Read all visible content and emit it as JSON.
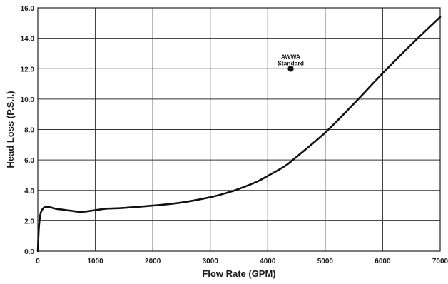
{
  "chart_data": {
    "type": "line",
    "xlabel": "Flow Rate (GPM)",
    "ylabel": "Head Loss (P.S.I.)",
    "xlim": [
      0,
      7000
    ],
    "ylim": [
      0,
      16
    ],
    "x_ticks": [
      0,
      1000,
      2000,
      3000,
      4000,
      5000,
      6000,
      7000
    ],
    "x_tick_labels": [
      "0",
      "1000",
      "2000",
      "3000",
      "4000",
      "5000",
      "6000",
      "7000"
    ],
    "y_ticks": [
      0,
      2,
      4,
      6,
      8,
      10,
      12,
      14,
      16
    ],
    "y_tick_labels": [
      "0.0",
      "2.0",
      "4.0",
      "6.0",
      "8.0",
      "10.0",
      "12.0",
      "14.0",
      "16.0"
    ],
    "grid": true,
    "series": [
      {
        "x": [
          0,
          20,
          50,
          100,
          150,
          200,
          300,
          400,
          500,
          600,
          700,
          800,
          1000,
          1200,
          1500,
          2000,
          2500,
          3000,
          3300,
          3500,
          3800,
          4000,
          4300,
          4500,
          5000,
          5500,
          6000,
          6500,
          7000
        ],
        "y": [
          0,
          1.6,
          2.5,
          2.85,
          2.9,
          2.9,
          2.8,
          2.75,
          2.7,
          2.65,
          2.6,
          2.6,
          2.7,
          2.8,
          2.85,
          3.0,
          3.2,
          3.55,
          3.85,
          4.1,
          4.55,
          4.95,
          5.6,
          6.2,
          7.8,
          9.7,
          11.7,
          13.6,
          15.4
        ],
        "color": "#111111"
      }
    ],
    "points": [
      {
        "x": 4400,
        "y": 12.0,
        "label_line1": "AWWA",
        "label_line2": "Standard"
      }
    ]
  }
}
